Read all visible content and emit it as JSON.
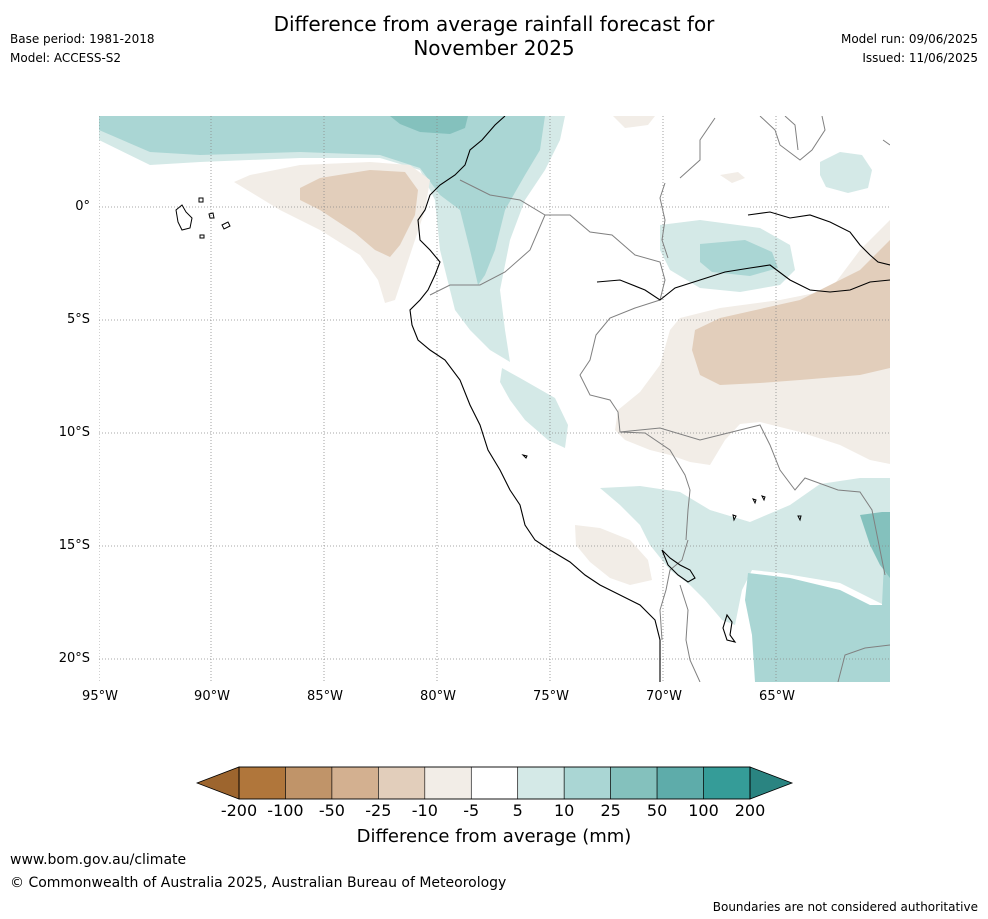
{
  "header": {
    "title_line1": "Difference from average rainfall forecast for",
    "title_line2": "November 2025",
    "base_period": "Base period: 1981-2018",
    "model": "Model: ACCESS-S2",
    "model_run": "Model run: 09/06/2025",
    "issued": "Issued: 11/06/2025"
  },
  "map": {
    "lat_labels": [
      "0°",
      "5°S",
      "10°S",
      "15°S",
      "20°S"
    ],
    "lon_labels": [
      "95°W",
      "90°W",
      "85°W",
      "80°W",
      "75°W",
      "70°W",
      "65°W"
    ],
    "colors": {
      "dry_10": "#f2ede7",
      "dry_25": "#e2cebb",
      "wet_5": "#d4e9e7",
      "wet_10": "#aad6d4",
      "wet_25": "#84c1bd",
      "coast": "#000000",
      "border": "#808080"
    }
  },
  "colorbar": {
    "title": "Difference from average (mm)",
    "tick_labels": [
      "-200",
      "-100",
      "-50",
      "-25",
      "-10",
      "-5",
      "5",
      "10",
      "25",
      "50",
      "100",
      "200"
    ],
    "segment_colors": [
      "#b0763b",
      "#c09469",
      "#d3b090",
      "#e2cebb",
      "#f2ede7",
      "#ffffff",
      "#d4e9e7",
      "#aad6d4",
      "#84c1bd",
      "#5eacaa",
      "#359c98"
    ],
    "low_extend_color": "#9d652e",
    "high_extend_color": "#2a8481"
  },
  "footer": {
    "url": "www.bom.gov.au/climate",
    "copyright": "© Commonwealth of Australia 2025, Australian Bureau of Meteorology",
    "disclaimer": "Boundaries are not considered authoritative"
  }
}
